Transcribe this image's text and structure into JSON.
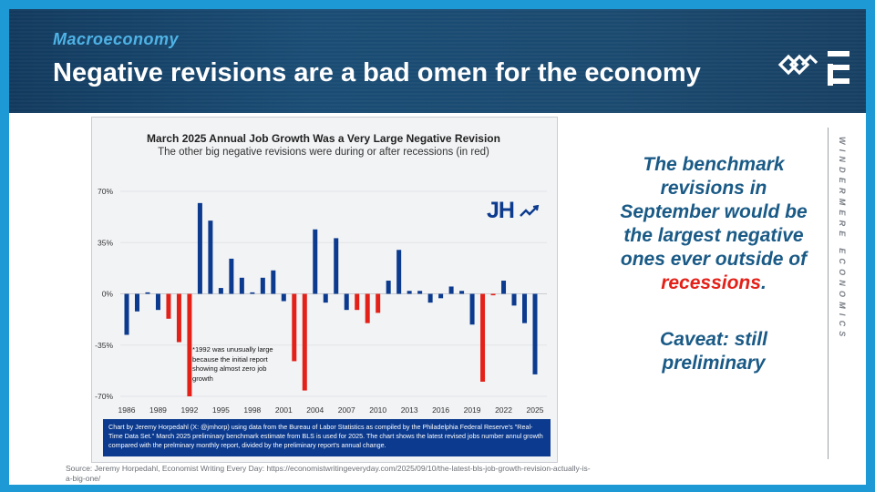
{
  "slide": {
    "section": "Macroeconomy",
    "title": "Negative revisions are a bad omen for the economy",
    "side_text_1": "The benchmark revisions in September would be the largest negative ones ever outside of",
    "side_text_red": "recessions",
    "side_text_2": ".",
    "caveat": "Caveat: still preliminary",
    "brand_vertical": "WINDERMERE ECONOMICS",
    "source": "Source: Jeremy Horpedahl, Economist Writing Every Day: https://economistwritingeveryday.com/2025/09/10/the-latest-bls-job-growth-revision-actually-is-a-big-one/"
  },
  "chart": {
    "watermark": "JH",
    "annotation": "*1992 was unusually large because the initial report showing almost zero job growth",
    "caption": "Chart by Jeremy Horpedahl (X: @jmhorp) using data from the Bureau of Labor Statistics as compiled by the Philadelphia Federal Reserve's \"Real-Time Data Set.\" March 2025 preliminary benchmark estimate from BLS is used for 2025. The chart shows the latest revised jobs number annul growth compared with the prelminary monthly report, divided by the preliminary report's annual change."
  },
  "chart_data": {
    "type": "bar",
    "title": "March 2025 Annual Job Growth Was a Very Large Negative Revision",
    "subtitle": "The other big negative revisions were during or after recessions (in red)",
    "xlabel": "",
    "ylabel": "",
    "ylim": [
      -70,
      70
    ],
    "y_ticks": [
      "70%",
      "35%",
      "0%",
      "-35%",
      "-70%"
    ],
    "y_tick_values": [
      70,
      35,
      0,
      -35,
      -70
    ],
    "x_tick_labels": [
      "1986",
      "1989",
      "1992",
      "1995",
      "1998",
      "2001",
      "2004",
      "2007",
      "2010",
      "2013",
      "2016",
      "2019",
      "2022",
      "2025"
    ],
    "x_tick_years": [
      1986,
      1989,
      1992,
      1995,
      1998,
      2001,
      2004,
      2007,
      2010,
      2013,
      2016,
      2019,
      2022,
      2025
    ],
    "grid": "horizontal",
    "legend": "none",
    "colors": {
      "normal": "#0b3a8e",
      "recession": "#e32119"
    },
    "bars": [
      {
        "year": 1986,
        "value": -28,
        "recession": false
      },
      {
        "year": 1987,
        "value": -12,
        "recession": false
      },
      {
        "year": 1988,
        "value": 1,
        "recession": false
      },
      {
        "year": 1989,
        "value": -11,
        "recession": false
      },
      {
        "year": 1990,
        "value": -17,
        "recession": true
      },
      {
        "year": 1991,
        "value": -33,
        "recession": true
      },
      {
        "year": 1992,
        "value": -70,
        "recession": true
      },
      {
        "year": 1993,
        "value": 62,
        "recession": false
      },
      {
        "year": 1994,
        "value": 50,
        "recession": false
      },
      {
        "year": 1995,
        "value": 4,
        "recession": false
      },
      {
        "year": 1996,
        "value": 24,
        "recession": false
      },
      {
        "year": 1997,
        "value": 11,
        "recession": false
      },
      {
        "year": 1998,
        "value": 1,
        "recession": false
      },
      {
        "year": 1999,
        "value": 11,
        "recession": false
      },
      {
        "year": 2000,
        "value": 16,
        "recession": false
      },
      {
        "year": 2001,
        "value": -5,
        "recession": false
      },
      {
        "year": 2002,
        "value": -46,
        "recession": true
      },
      {
        "year": 2003,
        "value": -66,
        "recession": true
      },
      {
        "year": 2004,
        "value": 44,
        "recession": false
      },
      {
        "year": 2005,
        "value": -6,
        "recession": false
      },
      {
        "year": 2006,
        "value": 38,
        "recession": false
      },
      {
        "year": 2007,
        "value": -11,
        "recession": false
      },
      {
        "year": 2008,
        "value": -11,
        "recession": true
      },
      {
        "year": 2009,
        "value": -20,
        "recession": true
      },
      {
        "year": 2010,
        "value": -13,
        "recession": true
      },
      {
        "year": 2011,
        "value": 9,
        "recession": false
      },
      {
        "year": 2012,
        "value": 30,
        "recession": false
      },
      {
        "year": 2013,
        "value": 2,
        "recession": false
      },
      {
        "year": 2014,
        "value": 2,
        "recession": false
      },
      {
        "year": 2015,
        "value": -6,
        "recession": false
      },
      {
        "year": 2016,
        "value": -3,
        "recession": false
      },
      {
        "year": 2017,
        "value": 5,
        "recession": false
      },
      {
        "year": 2018,
        "value": 2,
        "recession": false
      },
      {
        "year": 2019,
        "value": -21,
        "recession": false
      },
      {
        "year": 2020,
        "value": -60,
        "recession": true
      },
      {
        "year": 2021,
        "value": -1,
        "recession": true
      },
      {
        "year": 2022,
        "value": 9,
        "recession": false
      },
      {
        "year": 2023,
        "value": -8,
        "recession": false
      },
      {
        "year": 2024,
        "value": -20,
        "recession": false
      },
      {
        "year": 2025,
        "value": -55,
        "recession": false
      }
    ]
  }
}
